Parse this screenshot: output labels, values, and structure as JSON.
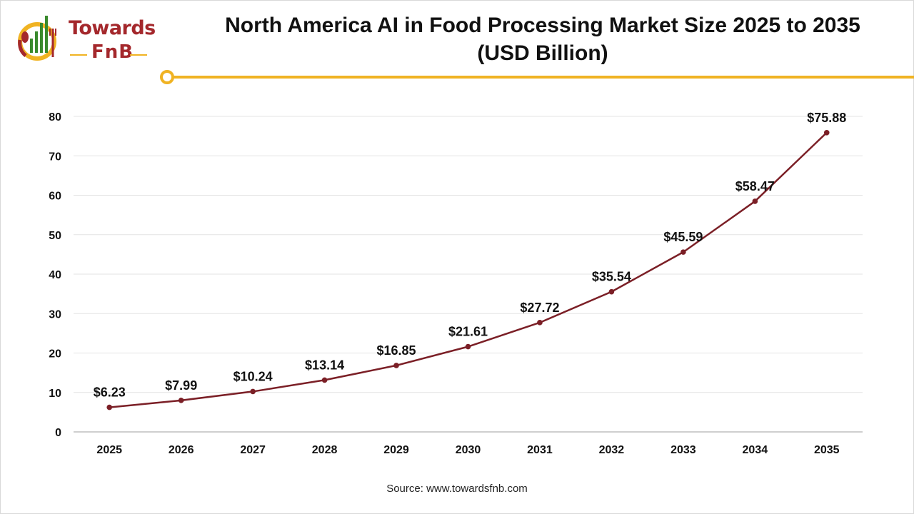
{
  "brand": {
    "name_top": "Towards",
    "name_bottom": "FnB"
  },
  "title": {
    "line1": "North America AI in Food Processing Market Size 2025 to 2035",
    "line2": "(USD Billion)"
  },
  "source": "Source: www.towardsfnb.com",
  "colors": {
    "line": "#7b1f26",
    "accent": "#f0b323",
    "brand": "#a4282c",
    "logo_green": "#3a8a2e"
  },
  "chart_data": {
    "type": "line",
    "title": "North America AI in Food Processing Market Size 2025 to 2035 (USD Billion)",
    "xlabel": "",
    "ylabel": "",
    "categories": [
      "2025",
      "2026",
      "2027",
      "2028",
      "2029",
      "2030",
      "2031",
      "2032",
      "2033",
      "2034",
      "2035"
    ],
    "series": [
      {
        "values": [
          6.23,
          7.99,
          10.24,
          13.14,
          16.85,
          21.61,
          27.72,
          35.54,
          45.59,
          58.47,
          75.88
        ],
        "labels": [
          "$6.23",
          "$7.99",
          "$10.24",
          "$13.14",
          "$16.85",
          "$21.61",
          "$27.72",
          "$35.54",
          "$45.59",
          "$58.47",
          "$75.88"
        ]
      }
    ],
    "ylim": [
      0,
      80
    ],
    "yticks": [
      0,
      10,
      20,
      30,
      40,
      50,
      60,
      70,
      80
    ],
    "grid": true,
    "legend": "none"
  }
}
